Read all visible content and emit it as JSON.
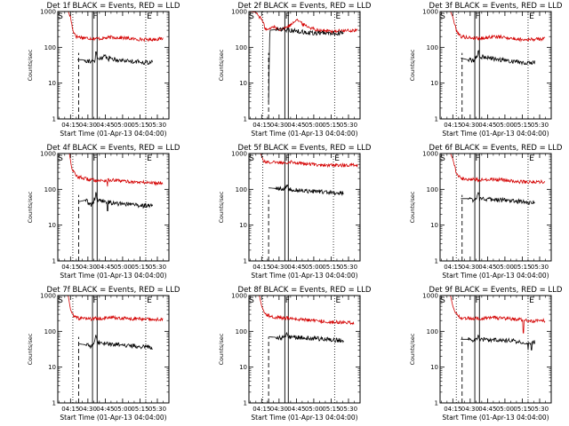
{
  "chart_data": {
    "type": "line",
    "title_suffix": "BLACK = Events, RED = LLD",
    "xlabel": "Start Time (01-Apr-13 04:04:00)",
    "ylabel": "Counts/sec",
    "y_scale": "log",
    "ylim": [
      1,
      1000
    ],
    "y_ticks": [
      1,
      10,
      100,
      1000
    ],
    "y_tick_labels": [
      "1",
      "10",
      "100",
      "1000"
    ],
    "xlim_minutes": [
      4,
      100
    ],
    "x_ticks_minutes": [
      15,
      30,
      45,
      60,
      75,
      90
    ],
    "x_tick_labels": [
      "04:15",
      "04:30",
      "04:45",
      "05:00",
      "05:15",
      "05:30"
    ],
    "series_colors": {
      "events": "#000000",
      "lld": "#d40000"
    },
    "marker_labels": {
      "start": "S",
      "flare": "F",
      "end": "E"
    },
    "panels": [
      {
        "title": "Det 1f",
        "start": 17,
        "dash": 22,
        "flare": [
          34,
          38
        ],
        "end": 80,
        "lld": [
          [
            8,
            1000
          ],
          [
            13,
            1000
          ],
          [
            15,
            700
          ],
          [
            17,
            300
          ],
          [
            20,
            200
          ],
          [
            30,
            180
          ],
          [
            40,
            175
          ],
          [
            50,
            190
          ],
          [
            60,
            185
          ],
          [
            70,
            170
          ],
          [
            80,
            165
          ],
          [
            90,
            170
          ],
          [
            95,
            175
          ]
        ],
        "events": [
          [
            21,
            45
          ],
          [
            25,
            45
          ],
          [
            30,
            42
          ],
          [
            36,
            40
          ],
          [
            37,
            75
          ],
          [
            38,
            48
          ],
          [
            45,
            55
          ],
          [
            55,
            45
          ],
          [
            65,
            42
          ],
          [
            80,
            38
          ],
          [
            86,
            38
          ]
        ],
        "spikes": [
          [
            37,
            "events",
            75
          ],
          [
            48,
            "events",
            40
          ]
        ]
      },
      {
        "title": "Det 2f",
        "start": 16,
        "dash": 21,
        "flare": [
          35,
          38
        ],
        "end": 78,
        "lld": [
          [
            4,
            1000
          ],
          [
            10,
            950
          ],
          [
            15,
            600
          ],
          [
            18,
            350
          ],
          [
            20,
            300
          ],
          [
            25,
            380
          ],
          [
            30,
            320
          ],
          [
            35,
            340
          ],
          [
            40,
            420
          ],
          [
            45,
            620
          ],
          [
            50,
            450
          ],
          [
            55,
            380
          ],
          [
            60,
            330
          ],
          [
            65,
            300
          ],
          [
            70,
            290
          ],
          [
            75,
            280
          ],
          [
            80,
            285
          ],
          [
            88,
            290
          ],
          [
            98,
            300
          ]
        ],
        "events": [
          [
            21,
            3
          ],
          [
            22,
            300
          ],
          [
            30,
            320
          ],
          [
            40,
            300
          ],
          [
            50,
            270
          ],
          [
            60,
            250
          ],
          [
            70,
            250
          ],
          [
            80,
            250
          ],
          [
            86,
            250
          ]
        ],
        "spikes": []
      },
      {
        "title": "Det 3f",
        "start": 18,
        "dash": 23,
        "flare": [
          34,
          38
        ],
        "end": 80,
        "lld": [
          [
            10,
            1000
          ],
          [
            13,
            1000
          ],
          [
            15,
            700
          ],
          [
            18,
            300
          ],
          [
            22,
            200
          ],
          [
            30,
            185
          ],
          [
            40,
            180
          ],
          [
            50,
            200
          ],
          [
            60,
            190
          ],
          [
            70,
            170
          ],
          [
            80,
            165
          ],
          [
            90,
            170
          ],
          [
            95,
            175
          ]
        ],
        "events": [
          [
            22,
            50
          ],
          [
            28,
            45
          ],
          [
            33,
            42
          ],
          [
            36,
            55
          ],
          [
            37,
            90
          ],
          [
            38,
            55
          ],
          [
            45,
            52
          ],
          [
            55,
            45
          ],
          [
            65,
            42
          ],
          [
            75,
            38
          ],
          [
            86,
            38
          ]
        ],
        "spikes": []
      },
      {
        "title": "Det 4f",
        "start": 17,
        "dash": 22,
        "flare": [
          34,
          38
        ],
        "end": 80,
        "lld": [
          [
            10,
            1000
          ],
          [
            14,
            1000
          ],
          [
            16,
            400
          ],
          [
            20,
            230
          ],
          [
            30,
            190
          ],
          [
            40,
            175
          ],
          [
            50,
            180
          ],
          [
            60,
            170
          ],
          [
            70,
            160
          ],
          [
            80,
            155
          ],
          [
            90,
            150
          ],
          [
            95,
            155
          ]
        ],
        "events": [
          [
            22,
            45
          ],
          [
            28,
            50
          ],
          [
            33,
            35
          ],
          [
            36,
            55
          ],
          [
            37,
            95
          ],
          [
            38,
            50
          ],
          [
            45,
            45
          ],
          [
            55,
            40
          ],
          [
            65,
            38
          ],
          [
            75,
            35
          ],
          [
            86,
            35
          ]
        ],
        "spikes": [
          [
            47,
            "events",
            25
          ],
          [
            47,
            "lld",
            120
          ]
        ]
      },
      {
        "title": "Det 5f",
        "start": 16,
        "dash": 21,
        "flare": [
          35,
          38
        ],
        "end": 77,
        "lld": [
          [
            10,
            1000
          ],
          [
            14,
            1000
          ],
          [
            17,
            600
          ],
          [
            25,
            560
          ],
          [
            35,
            560
          ],
          [
            40,
            600
          ],
          [
            50,
            520
          ],
          [
            60,
            500
          ],
          [
            70,
            480
          ],
          [
            80,
            470
          ],
          [
            90,
            470
          ],
          [
            98,
            470
          ]
        ],
        "events": [
          [
            21,
            110
          ],
          [
            28,
            105
          ],
          [
            33,
            100
          ],
          [
            36,
            110
          ],
          [
            37,
            140
          ],
          [
            38,
            105
          ],
          [
            45,
            95
          ],
          [
            55,
            90
          ],
          [
            65,
            85
          ],
          [
            75,
            80
          ],
          [
            86,
            78
          ]
        ],
        "spikes": []
      },
      {
        "title": "Det 6f",
        "start": 18,
        "dash": 23,
        "flare": [
          34,
          38
        ],
        "end": 80,
        "lld": [
          [
            10,
            1000
          ],
          [
            13,
            1000
          ],
          [
            15,
            700
          ],
          [
            18,
            300
          ],
          [
            22,
            200
          ],
          [
            30,
            190
          ],
          [
            40,
            185
          ],
          [
            50,
            190
          ],
          [
            60,
            180
          ],
          [
            70,
            165
          ],
          [
            80,
            160
          ],
          [
            90,
            160
          ],
          [
            95,
            165
          ]
        ],
        "events": [
          [
            22,
            55
          ],
          [
            28,
            55
          ],
          [
            33,
            50
          ],
          [
            36,
            60
          ],
          [
            37,
            90
          ],
          [
            38,
            55
          ],
          [
            45,
            52
          ],
          [
            55,
            50
          ],
          [
            65,
            48
          ],
          [
            75,
            45
          ],
          [
            86,
            42
          ]
        ],
        "spikes": []
      },
      {
        "title": "Det 7f",
        "start": 17,
        "dash": 22,
        "flare": [
          34,
          38
        ],
        "end": 80,
        "lld": [
          [
            10,
            1000
          ],
          [
            13,
            1000
          ],
          [
            15,
            400
          ],
          [
            18,
            260
          ],
          [
            22,
            230
          ],
          [
            30,
            220
          ],
          [
            40,
            230
          ],
          [
            50,
            240
          ],
          [
            60,
            230
          ],
          [
            70,
            225
          ],
          [
            80,
            220
          ],
          [
            90,
            215
          ],
          [
            95,
            220
          ]
        ],
        "events": [
          [
            22,
            45
          ],
          [
            28,
            42
          ],
          [
            33,
            38
          ],
          [
            36,
            55
          ],
          [
            37,
            90
          ],
          [
            38,
            50
          ],
          [
            45,
            45
          ],
          [
            55,
            42
          ],
          [
            65,
            40
          ],
          [
            75,
            38
          ],
          [
            86,
            36
          ]
        ],
        "spikes": []
      },
      {
        "title": "Det 8f",
        "start": 16,
        "dash": 21,
        "flare": [
          35,
          38
        ],
        "end": 78,
        "lld": [
          [
            10,
            1000
          ],
          [
            13,
            1000
          ],
          [
            15,
            500
          ],
          [
            18,
            320
          ],
          [
            22,
            260
          ],
          [
            30,
            240
          ],
          [
            40,
            230
          ],
          [
            50,
            210
          ],
          [
            60,
            200
          ],
          [
            70,
            190
          ],
          [
            80,
            180
          ],
          [
            90,
            175
          ],
          [
            95,
            175
          ]
        ],
        "events": [
          [
            21,
            70
          ],
          [
            28,
            68
          ],
          [
            33,
            65
          ],
          [
            36,
            75
          ],
          [
            37,
            95
          ],
          [
            38,
            70
          ],
          [
            45,
            68
          ],
          [
            55,
            64
          ],
          [
            65,
            62
          ],
          [
            75,
            58
          ],
          [
            86,
            55
          ]
        ],
        "spikes": []
      },
      {
        "title": "Det 9f",
        "start": 18,
        "dash": 23,
        "flare": [
          34,
          38
        ],
        "end": 80,
        "lld": [
          [
            10,
            1000
          ],
          [
            13,
            1000
          ],
          [
            15,
            500
          ],
          [
            18,
            300
          ],
          [
            22,
            240
          ],
          [
            30,
            235
          ],
          [
            40,
            230
          ],
          [
            50,
            240
          ],
          [
            60,
            230
          ],
          [
            70,
            215
          ],
          [
            80,
            200
          ],
          [
            90,
            195
          ],
          [
            95,
            200
          ]
        ],
        "events": [
          [
            22,
            60
          ],
          [
            28,
            60
          ],
          [
            33,
            55
          ],
          [
            36,
            65
          ],
          [
            37,
            85
          ],
          [
            38,
            60
          ],
          [
            45,
            58
          ],
          [
            55,
            55
          ],
          [
            65,
            55
          ],
          [
            75,
            50
          ],
          [
            86,
            50
          ]
        ],
        "spikes": [
          [
            20,
            "events",
            2
          ],
          [
            76,
            "lld",
            90
          ],
          [
            80,
            "events",
            30
          ],
          [
            83,
            "events",
            30
          ]
        ]
      }
    ]
  }
}
